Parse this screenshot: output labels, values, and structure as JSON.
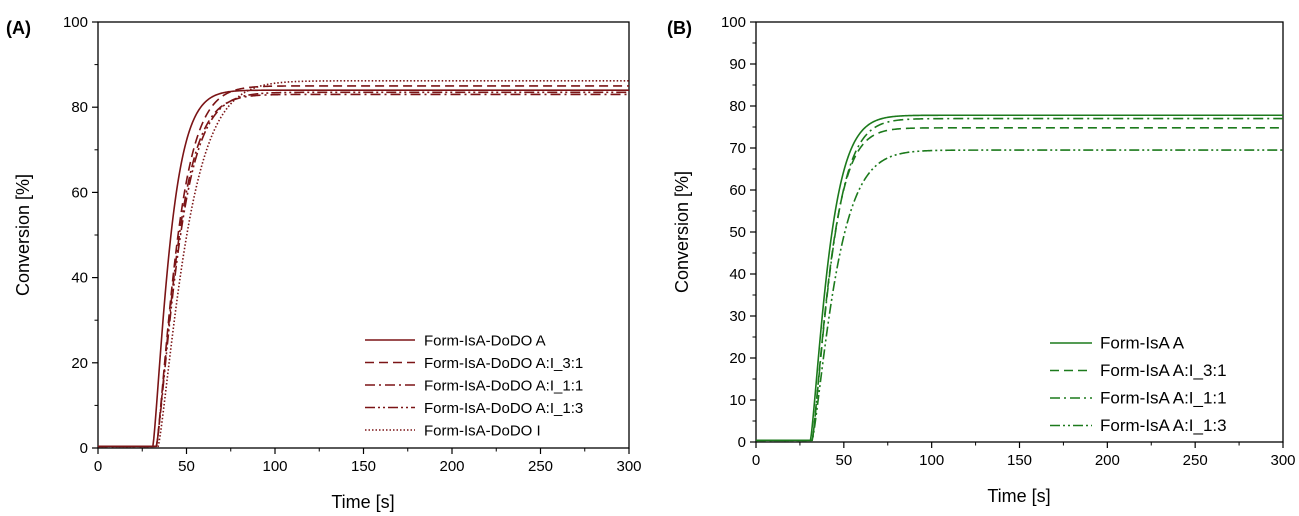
{
  "chart_data": [
    {
      "panel_label": "(A)",
      "type": "line",
      "xlabel": "Time [s]",
      "ylabel": "Conversion [%]",
      "xlim": [
        0,
        300
      ],
      "ylim": [
        0,
        100
      ],
      "xticks": [
        0,
        50,
        100,
        150,
        200,
        250,
        300
      ],
      "yticks": [
        0,
        20,
        40,
        60,
        80,
        100
      ],
      "grid": false,
      "legend_position": "bottom-right",
      "color": "#7b1416",
      "series": [
        {
          "name": "Form-IsA-DoDO A",
          "style": "solid",
          "final": 84.0,
          "t0": 31,
          "k": 0.09
        },
        {
          "name": "Form-IsA-DoDO A:I_3:1",
          "style": "dash",
          "final": 85.0,
          "t0": 33,
          "k": 0.074
        },
        {
          "name": "Form-IsA-DoDO A:I_1:1",
          "style": "dashdot",
          "final": 83.0,
          "t0": 33,
          "k": 0.072
        },
        {
          "name": "Form-IsA-DoDO A:I_1:3",
          "style": "dashdotdot",
          "final": 83.5,
          "t0": 33,
          "k": 0.068
        },
        {
          "name": "Form-IsA-DoDO I",
          "style": "dot",
          "final": 86.2,
          "t0": 34,
          "k": 0.055
        }
      ]
    },
    {
      "panel_label": "(B)",
      "type": "line",
      "xlabel": "Time [s]",
      "ylabel": "Conversion [%]",
      "xlim": [
        0,
        300
      ],
      "ylim": [
        0,
        100
      ],
      "xticks": [
        0,
        50,
        100,
        150,
        200,
        250,
        300
      ],
      "yticks": [
        0,
        10,
        20,
        30,
        40,
        50,
        60,
        70,
        80,
        90,
        100
      ],
      "grid": false,
      "legend_position": "bottom-right",
      "color": "#1c7a1c",
      "series": [
        {
          "name": "Form-IsA A",
          "style": "solid",
          "final": 77.8,
          "t0": 31,
          "k": 0.083
        },
        {
          "name": "Form-IsA A:I_3:1",
          "style": "dash",
          "final": 74.8,
          "t0": 32,
          "k": 0.082
        },
        {
          "name": "Form-IsA A:I_1:1",
          "style": "dashdot",
          "final": 77.0,
          "t0": 32,
          "k": 0.078
        },
        {
          "name": "Form-IsA A:I_1:3",
          "style": "dashdotdot",
          "final": 69.5,
          "t0": 32,
          "k": 0.065
        }
      ]
    }
  ]
}
